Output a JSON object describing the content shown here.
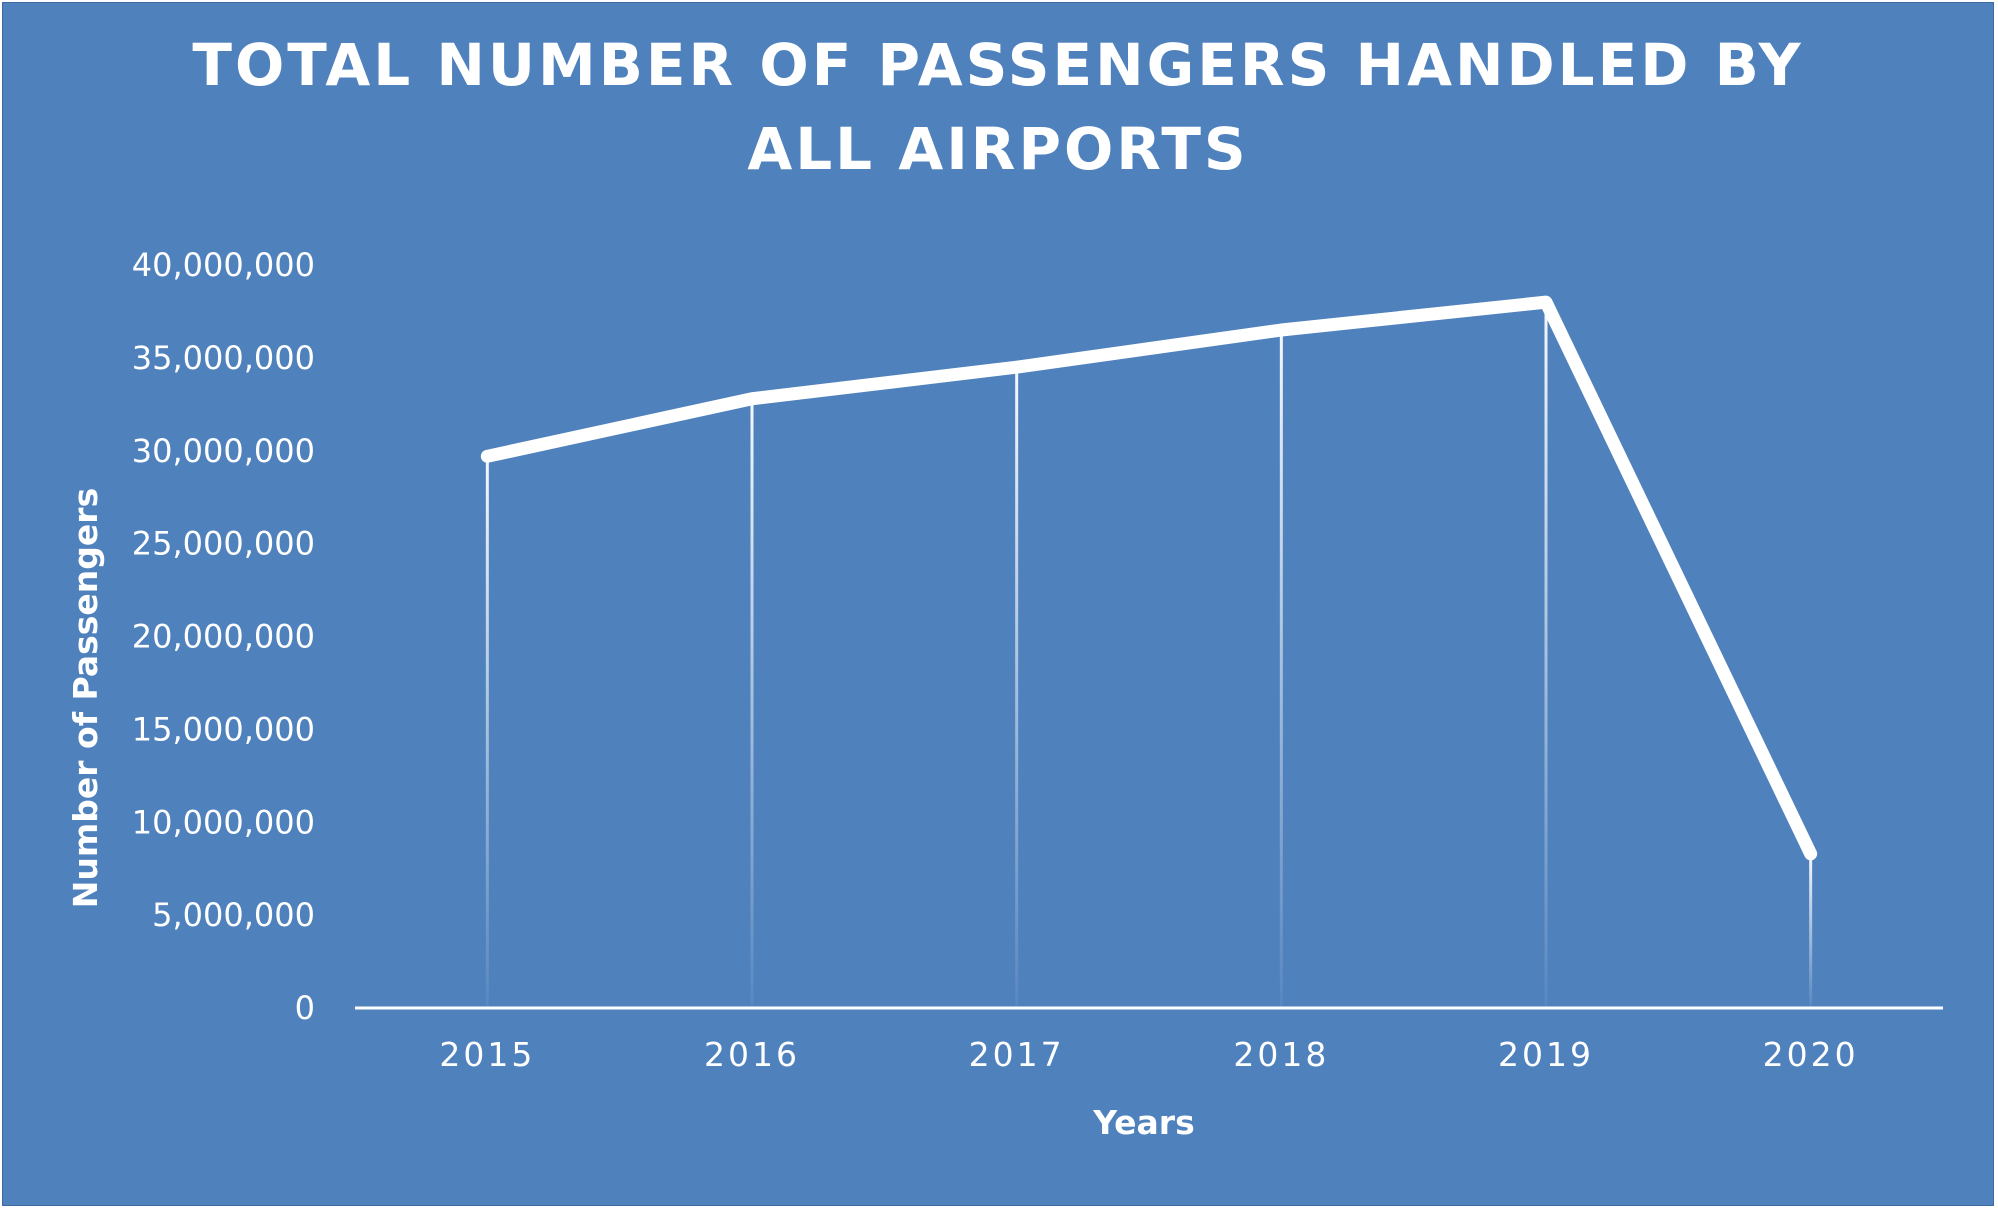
{
  "chart_data": {
    "type": "line",
    "title_lines": [
      "TOTAL NUMBER OF PASSENGERS HANDLED BY",
      "ALL AIRPORTS"
    ],
    "xlabel": "Years",
    "ylabel": "Number of Passengers",
    "categories": [
      "2015",
      "2016",
      "2017",
      "2018",
      "2019",
      "2020"
    ],
    "series": [
      {
        "values": [
          29700000,
          32800000,
          34500000,
          36500000,
          38000000,
          8300000
        ]
      }
    ],
    "ylim": [
      0,
      40000000
    ],
    "yticks": [
      0,
      5000000,
      10000000,
      15000000,
      20000000,
      25000000,
      30000000,
      35000000,
      40000000
    ],
    "ytick_labels": [
      "0",
      "5,000,000",
      "10,000,000",
      "15,000,000",
      "20,000,000",
      "25,000,000",
      "30,000,000",
      "35,000,000",
      "40,000,000"
    ],
    "drop_lines": true,
    "grid": false,
    "colors": {
      "background": "#4f81bd",
      "line": "#ffffff",
      "text": "#ffffff"
    }
  }
}
